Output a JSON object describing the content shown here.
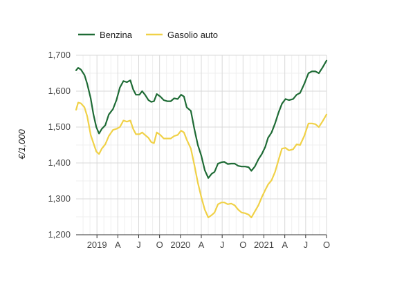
{
  "chart_data": {
    "type": "line",
    "ylabel": "€/1,000",
    "ylim": [
      1200,
      1700
    ],
    "yticks": [
      1200,
      1300,
      1400,
      1500,
      1600,
      1700
    ],
    "ytick_labels": [
      "1,200",
      "1,300",
      "1,400",
      "1,500",
      "1,600",
      "1,700"
    ],
    "xlim": [
      0,
      36
    ],
    "x_unit": "month index (0 = Oct 2018)",
    "xticks": [
      {
        "x": 3,
        "label": "2019"
      },
      {
        "x": 6,
        "label": "A"
      },
      {
        "x": 9,
        "label": "J"
      },
      {
        "x": 12,
        "label": "O"
      },
      {
        "x": 15,
        "label": "2020"
      },
      {
        "x": 18,
        "label": "A"
      },
      {
        "x": 21,
        "label": "J"
      },
      {
        "x": 24,
        "label": "O"
      },
      {
        "x": 27,
        "label": "2021"
      },
      {
        "x": 30,
        "label": "A"
      },
      {
        "x": 33,
        "label": "J"
      },
      {
        "x": 36,
        "label": "O"
      }
    ],
    "grid": true,
    "legend_position": "top-left",
    "series": [
      {
        "name": "Benzina",
        "color": "#1e6b35",
        "points": [
          [
            0,
            1658
          ],
          [
            0.3,
            1665
          ],
          [
            0.7,
            1660
          ],
          [
            1.2,
            1645
          ],
          [
            1.6,
            1620
          ],
          [
            2.1,
            1580
          ],
          [
            2.5,
            1535
          ],
          [
            2.9,
            1500
          ],
          [
            3.3,
            1482
          ],
          [
            3.7,
            1495
          ],
          [
            4.2,
            1505
          ],
          [
            4.7,
            1535
          ],
          [
            5.3,
            1550
          ],
          [
            5.8,
            1575
          ],
          [
            6.3,
            1610
          ],
          [
            6.8,
            1628
          ],
          [
            7.3,
            1625
          ],
          [
            7.8,
            1630
          ],
          [
            8.2,
            1605
          ],
          [
            8.6,
            1590
          ],
          [
            9.1,
            1590
          ],
          [
            9.5,
            1600
          ],
          [
            9.9,
            1590
          ],
          [
            10.4,
            1575
          ],
          [
            10.8,
            1570
          ],
          [
            11.2,
            1572
          ],
          [
            11.6,
            1592
          ],
          [
            12.1,
            1585
          ],
          [
            12.6,
            1575
          ],
          [
            13.1,
            1572
          ],
          [
            13.6,
            1572
          ],
          [
            14.1,
            1580
          ],
          [
            14.6,
            1578
          ],
          [
            15.1,
            1590
          ],
          [
            15.5,
            1585
          ],
          [
            15.9,
            1555
          ],
          [
            16.5,
            1545
          ],
          [
            17.0,
            1495
          ],
          [
            17.5,
            1450
          ],
          [
            18.0,
            1420
          ],
          [
            18.5,
            1380
          ],
          [
            19.0,
            1358
          ],
          [
            19.5,
            1370
          ],
          [
            19.9,
            1375
          ],
          [
            20.4,
            1398
          ],
          [
            20.9,
            1402
          ],
          [
            21.3,
            1403
          ],
          [
            21.8,
            1397
          ],
          [
            22.3,
            1398
          ],
          [
            22.8,
            1398
          ],
          [
            23.3,
            1392
          ],
          [
            23.8,
            1390
          ],
          [
            24.3,
            1390
          ],
          [
            24.8,
            1388
          ],
          [
            25.2,
            1378
          ],
          [
            25.7,
            1390
          ],
          [
            26.2,
            1410
          ],
          [
            26.7,
            1425
          ],
          [
            27.2,
            1445
          ],
          [
            27.6,
            1470
          ],
          [
            28.1,
            1485
          ],
          [
            28.6,
            1510
          ],
          [
            29.1,
            1540
          ],
          [
            29.6,
            1565
          ],
          [
            30.1,
            1578
          ],
          [
            30.6,
            1575
          ],
          [
            31.2,
            1578
          ],
          [
            31.7,
            1590
          ],
          [
            32.2,
            1595
          ],
          [
            32.8,
            1620
          ],
          [
            33.4,
            1650
          ],
          [
            33.9,
            1655
          ],
          [
            34.4,
            1655
          ],
          [
            34.9,
            1650
          ],
          [
            35.4,
            1665
          ],
          [
            36,
            1685
          ]
        ]
      },
      {
        "name": "Gasolio auto",
        "color": "#f0d147",
        "points": [
          [
            0,
            1548
          ],
          [
            0.3,
            1568
          ],
          [
            0.7,
            1566
          ],
          [
            1.2,
            1555
          ],
          [
            1.6,
            1530
          ],
          [
            2.1,
            1478
          ],
          [
            2.5,
            1455
          ],
          [
            2.9,
            1432
          ],
          [
            3.3,
            1425
          ],
          [
            3.7,
            1440
          ],
          [
            4.2,
            1452
          ],
          [
            4.7,
            1475
          ],
          [
            5.3,
            1492
          ],
          [
            5.8,
            1495
          ],
          [
            6.3,
            1500
          ],
          [
            6.8,
            1518
          ],
          [
            7.3,
            1515
          ],
          [
            7.8,
            1518
          ],
          [
            8.2,
            1495
          ],
          [
            8.6,
            1480
          ],
          [
            9.1,
            1480
          ],
          [
            9.5,
            1485
          ],
          [
            9.9,
            1478
          ],
          [
            10.4,
            1470
          ],
          [
            10.8,
            1458
          ],
          [
            11.2,
            1455
          ],
          [
            11.6,
            1485
          ],
          [
            12.1,
            1478
          ],
          [
            12.6,
            1468
          ],
          [
            13.1,
            1468
          ],
          [
            13.6,
            1468
          ],
          [
            14.1,
            1475
          ],
          [
            14.6,
            1478
          ],
          [
            15.1,
            1490
          ],
          [
            15.5,
            1485
          ],
          [
            15.9,
            1465
          ],
          [
            16.5,
            1440
          ],
          [
            17.0,
            1395
          ],
          [
            17.5,
            1345
          ],
          [
            18.0,
            1305
          ],
          [
            18.5,
            1270
          ],
          [
            19.0,
            1248
          ],
          [
            19.5,
            1255
          ],
          [
            19.9,
            1262
          ],
          [
            20.4,
            1285
          ],
          [
            20.9,
            1290
          ],
          [
            21.3,
            1290
          ],
          [
            21.8,
            1285
          ],
          [
            22.3,
            1287
          ],
          [
            22.8,
            1282
          ],
          [
            23.3,
            1270
          ],
          [
            23.8,
            1262
          ],
          [
            24.3,
            1260
          ],
          [
            24.8,
            1256
          ],
          [
            25.2,
            1248
          ],
          [
            25.7,
            1265
          ],
          [
            26.2,
            1282
          ],
          [
            26.7,
            1305
          ],
          [
            27.2,
            1325
          ],
          [
            27.6,
            1340
          ],
          [
            28.1,
            1352
          ],
          [
            28.6,
            1375
          ],
          [
            29.1,
            1408
          ],
          [
            29.6,
            1440
          ],
          [
            30.1,
            1442
          ],
          [
            30.6,
            1435
          ],
          [
            31.2,
            1438
          ],
          [
            31.7,
            1452
          ],
          [
            32.2,
            1450
          ],
          [
            32.8,
            1475
          ],
          [
            33.4,
            1510
          ],
          [
            33.9,
            1510
          ],
          [
            34.4,
            1508
          ],
          [
            34.9,
            1500
          ],
          [
            35.4,
            1515
          ],
          [
            36,
            1535
          ]
        ]
      }
    ]
  }
}
